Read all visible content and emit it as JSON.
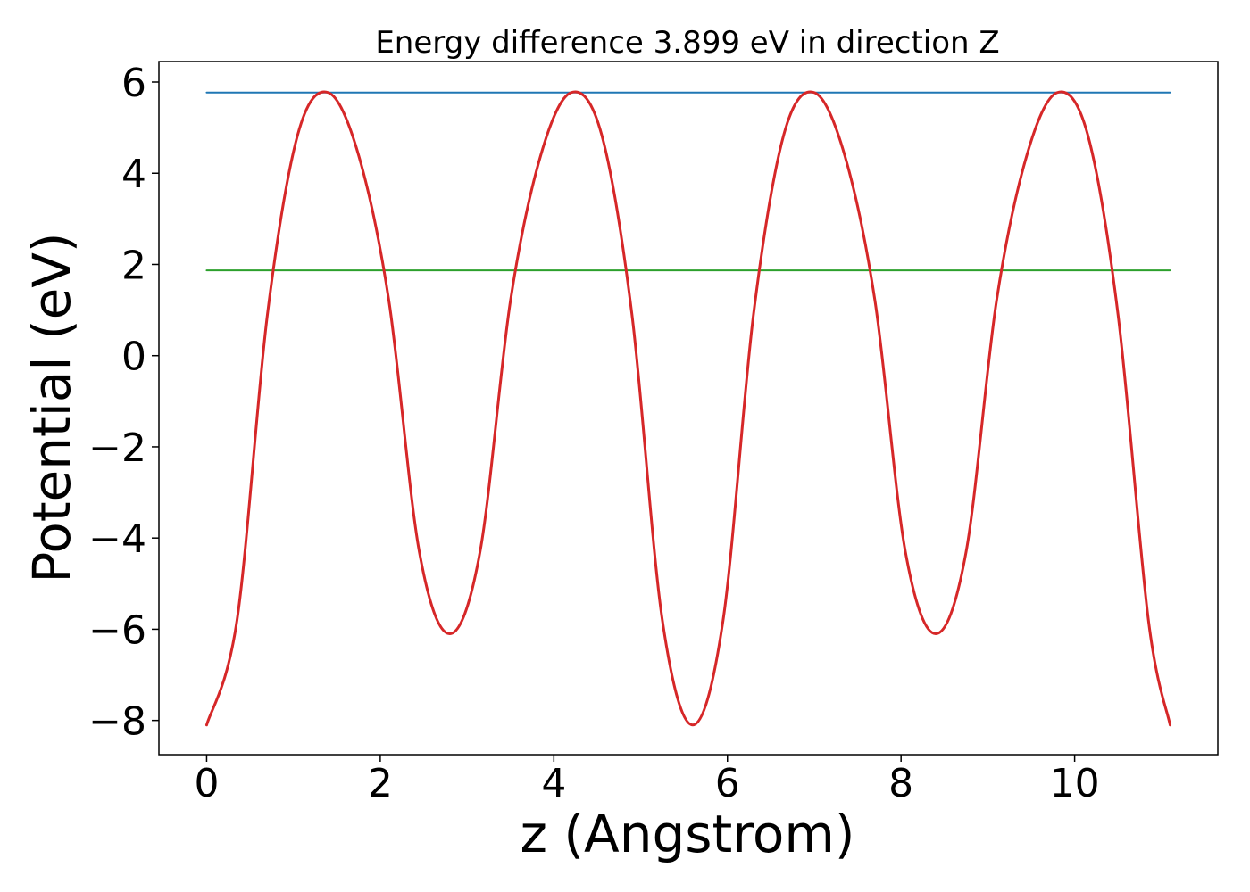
{
  "chart_data": {
    "type": "line",
    "title": "Energy difference 3.899 eV in direction Z",
    "xlabel": "z (Angstrom)",
    "ylabel": "Potential (eV)",
    "xlim": [
      -0.55,
      11.65
    ],
    "ylim": [
      -8.75,
      6.45
    ],
    "grid": false,
    "xticks": [
      {
        "value": 0,
        "label": "0"
      },
      {
        "value": 2,
        "label": "2"
      },
      {
        "value": 4,
        "label": "4"
      },
      {
        "value": 6,
        "label": "6"
      },
      {
        "value": 8,
        "label": "8"
      },
      {
        "value": 10,
        "label": "10"
      }
    ],
    "yticks": [
      {
        "value": 6,
        "label": "6"
      },
      {
        "value": 4,
        "label": "4"
      },
      {
        "value": 2,
        "label": "2"
      },
      {
        "value": 0,
        "label": "0"
      },
      {
        "value": -2,
        "label": "−2"
      },
      {
        "value": -4,
        "label": "−4"
      },
      {
        "value": -6,
        "label": "−6"
      },
      {
        "value": -8,
        "label": "−8"
      }
    ],
    "series": [
      {
        "color": "#1f77b4",
        "x": [
          0,
          11.1
        ],
        "y": [
          5.77,
          5.77
        ]
      },
      {
        "color": "#2ca02c",
        "x": [
          0,
          11.1
        ],
        "y": [
          1.87,
          1.87
        ]
      },
      {
        "color": "#d62728",
        "x": [
          0,
          0.35,
          0.7,
          1.05,
          1.4,
          1.75,
          2.1,
          2.45,
          2.8,
          3.15,
          3.5,
          3.85,
          4.2,
          4.55,
          4.9,
          5.25,
          5.6,
          5.95,
          6.3,
          6.65,
          7.0,
          7.35,
          7.7,
          8.05,
          8.4,
          8.75,
          9.1,
          9.45,
          9.8,
          10.15,
          10.5,
          10.85,
          11.1
        ],
        "y": [
          -8.1,
          -5.8,
          0.9,
          4.85,
          5.77,
          4.4,
          1.2,
          -4.3,
          -6.1,
          -4.3,
          1.2,
          4.4,
          5.77,
          4.85,
          0.9,
          -5.8,
          -8.1,
          -5.8,
          0.9,
          4.85,
          5.77,
          4.4,
          1.2,
          -4.3,
          -6.1,
          -4.3,
          1.2,
          4.4,
          5.77,
          4.85,
          0.9,
          -5.8,
          -8.1
        ]
      }
    ]
  }
}
